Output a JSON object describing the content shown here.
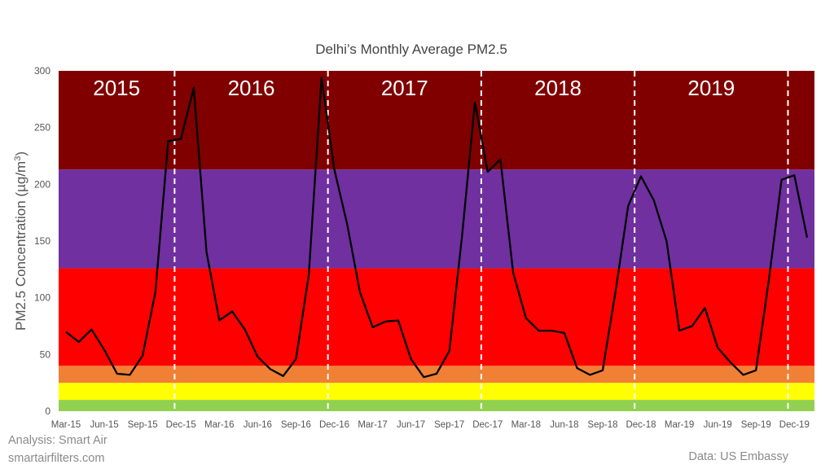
{
  "chart_data": {
    "type": "line",
    "title": "Delhi’s Monthly Average PM2.5",
    "ylabel_prefix": "PM2.5 Concentration (µg/m",
    "ylabel_sup": "3",
    "ylabel_suffix": ")",
    "ylim": [
      0,
      300
    ],
    "yticks": [
      "0",
      "50",
      "100",
      "150",
      "200",
      "250",
      "300"
    ],
    "ytick_values": [
      0,
      50,
      100,
      150,
      200,
      250,
      300
    ],
    "months": [
      "Mar-15",
      "Apr-15",
      "May-15",
      "Jun-15",
      "Jul-15",
      "Aug-15",
      "Sep-15",
      "Oct-15",
      "Nov-15",
      "Dec-15",
      "Jan-16",
      "Feb-16",
      "Mar-16",
      "Apr-16",
      "May-16",
      "Jun-16",
      "Jul-16",
      "Aug-16",
      "Sep-16",
      "Oct-16",
      "Nov-16",
      "Dec-16",
      "Jan-17",
      "Feb-17",
      "Mar-17",
      "Apr-17",
      "May-17",
      "Jun-17",
      "Jul-17",
      "Aug-17",
      "Sep-17",
      "Oct-17",
      "Nov-17",
      "Dec-17",
      "Jan-18",
      "Feb-18",
      "Mar-18",
      "Apr-18",
      "May-18",
      "Jun-18",
      "Jul-18",
      "Aug-18",
      "Sep-18",
      "Oct-18",
      "Nov-18",
      "Dec-18",
      "Jan-19",
      "Feb-19",
      "Mar-19",
      "Apr-19",
      "May-19",
      "Jun-19",
      "Jul-19",
      "Aug-19",
      "Sep-19",
      "Oct-19",
      "Nov-19",
      "Dec-19",
      "Jan-20"
    ],
    "values": [
      70,
      61,
      72,
      54,
      33,
      32,
      49,
      105,
      238,
      240,
      285,
      140,
      80,
      88,
      72,
      48,
      37,
      31,
      46,
      120,
      294,
      213,
      165,
      105,
      74,
      79,
      80,
      46,
      30,
      33,
      53,
      155,
      272,
      211,
      222,
      122,
      82,
      71,
      71,
      69,
      38,
      32,
      36,
      105,
      181,
      207,
      186,
      150,
      71,
      75,
      91,
      56,
      43,
      32,
      36,
      115,
      204,
      208,
      153
    ],
    "xtick_labels": [
      "Mar-15",
      "Jun-15",
      "Sep-15",
      "Dec-15",
      "Mar-16",
      "Jun-16",
      "Sep-16",
      "Dec-16",
      "Mar-17",
      "Jun-17",
      "Sep-17",
      "Dec-17",
      "Mar-18",
      "Jun-18",
      "Sep-18",
      "Dec-18",
      "Mar-19",
      "Jun-19",
      "Sep-19",
      "Dec-19"
    ],
    "bands": [
      {
        "from": 0,
        "to": 10,
        "color": "#92d050"
      },
      {
        "from": 10,
        "to": 25,
        "color": "#ffff00"
      },
      {
        "from": 25,
        "to": 40,
        "color": "#f08035"
      },
      {
        "from": 40,
        "to": 126,
        "color": "#ff0000"
      },
      {
        "from": 126,
        "to": 213,
        "color": "#7030a0"
      },
      {
        "from": 213,
        "to": 300,
        "color": "#800000"
      }
    ],
    "years": [
      "2015",
      "2016",
      "2017",
      "2018",
      "2019"
    ],
    "year_dividers_after_month": [
      "Nov-15",
      "Nov-16",
      "Nov-17",
      "Nov-18",
      "Nov-19"
    ],
    "line_color": "#000000",
    "grid": false,
    "legend": "none"
  },
  "credits": {
    "analysis": "Analysis: Smart Air",
    "site": "smartairfilters.com",
    "data_source": "Data: US Embassy"
  }
}
